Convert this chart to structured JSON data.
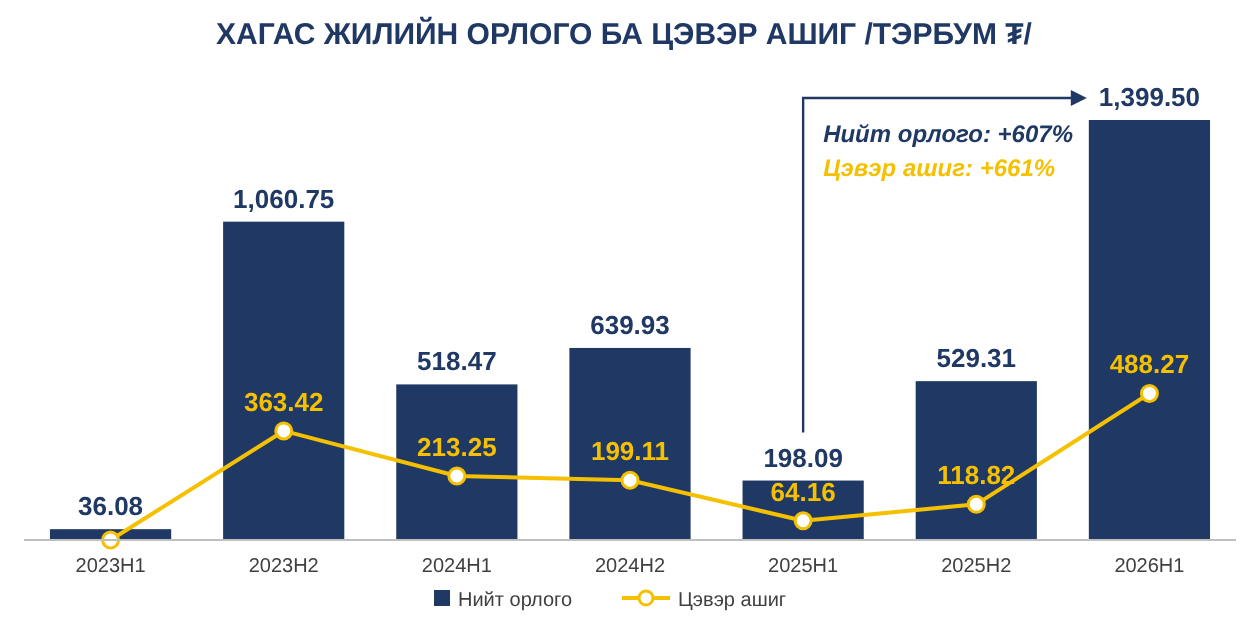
{
  "chart_data": {
    "type": "bar",
    "title": "ХАГАС ЖИЛИЙН ОРЛОГО БА ЦЭВЭР АШИГ /ТЭРБУМ ₮/",
    "categories": [
      "2023H1",
      "2023H2",
      "2024H1",
      "2024H2",
      "2025H1",
      "2025H2",
      "2026H1"
    ],
    "series": [
      {
        "name": "Нийт орлого",
        "color": "#1f3864",
        "values": [
          36.08,
          1060.75,
          518.47,
          639.93,
          198.09,
          529.31,
          1399.5
        ],
        "value_labels": [
          "36.08",
          "1,060.75",
          "518.47",
          "639.93",
          "198.09",
          "529.31",
          "1,399.50"
        ]
      },
      {
        "name": "Цэвэр ашиг",
        "type": "line",
        "color": "#f5c000",
        "marker": "circle",
        "values": [
          0,
          363.42,
          213.25,
          199.11,
          64.16,
          118.82,
          488.27
        ],
        "value_labels": [
          null,
          "363.42",
          "213.25",
          "199.11",
          "64.16",
          "118.82",
          "488.27"
        ]
      }
    ],
    "annotations": [
      "Нийт орлого: +607%",
      "Цэвэр ашиг: +661%"
    ],
    "legend": "bottom"
  }
}
